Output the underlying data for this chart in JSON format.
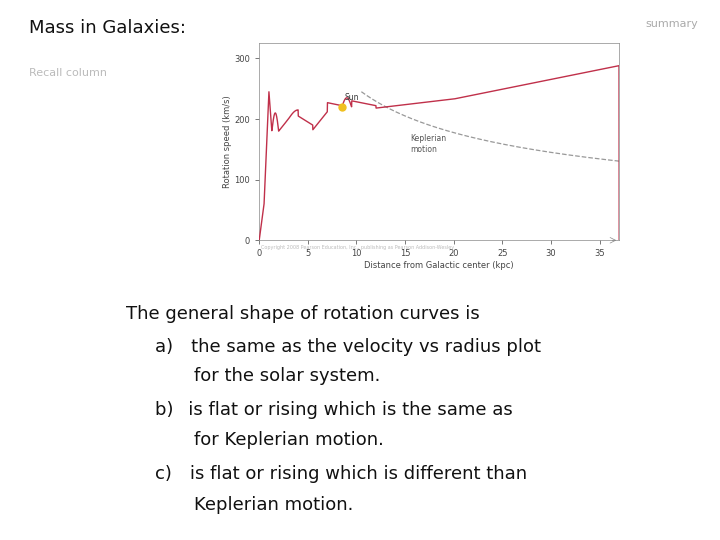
{
  "title": "Mass in Galaxies:",
  "summary_label": "summary",
  "recall_label": "Recall column",
  "bg_color": "#ffffff",
  "title_fontsize": 13,
  "summary_fontsize": 8,
  "recall_fontsize": 8,
  "question_text": "The general shape of rotation curves is",
  "question_fontsize": 13,
  "answer_fontsize": 13,
  "curve_color": "#c0304a",
  "keplerian_color": "#999999",
  "sun_color": "#f0c020",
  "axes_label_fontsize": 6,
  "axes_tick_fontsize": 6,
  "xlabel": "Distance from Galactic center (kpc)",
  "ylabel": "Rotation speed (km/s)",
  "copyright": "Copyright 2008 Pearson Education, Inc., publishing as Pearson Addison-Wesley"
}
